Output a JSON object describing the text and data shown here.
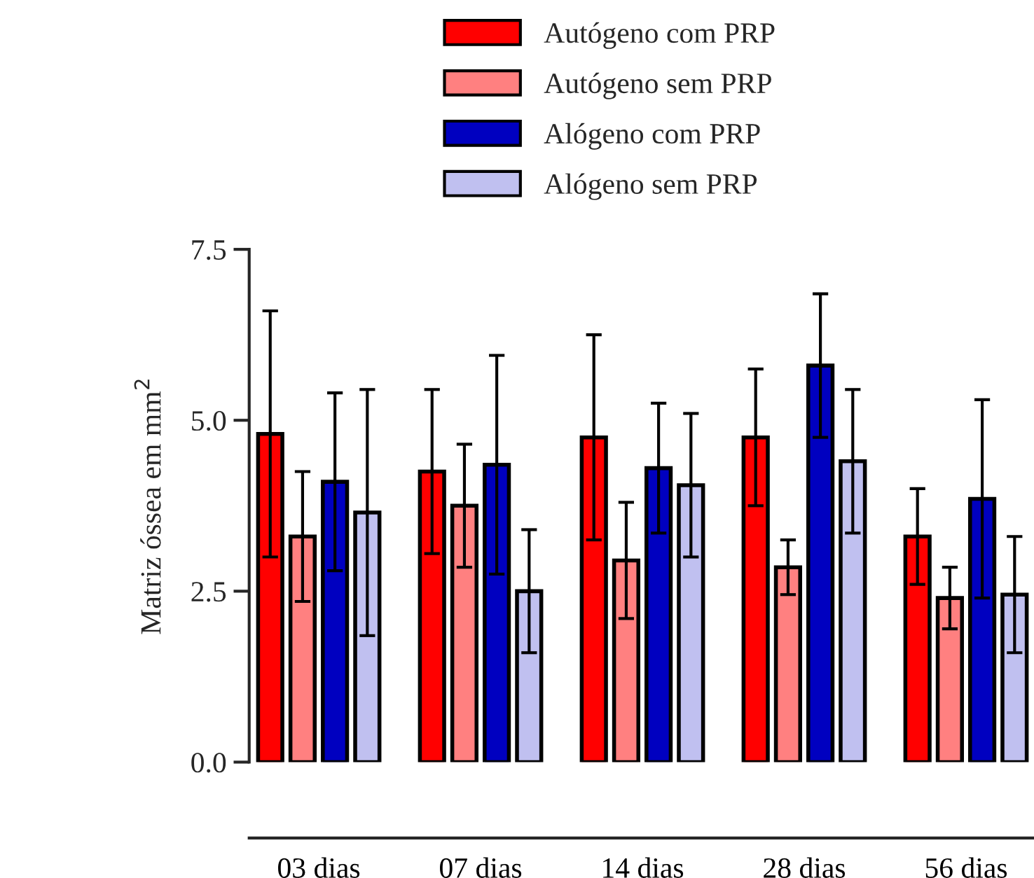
{
  "chart_data": {
    "type": "bar",
    "ylabel": "Matriz óssea em mm$^{2}$",
    "categories": [
      "03 dias",
      "07 dias",
      "14 dias",
      "28 dias",
      "56 dias"
    ],
    "series": [
      {
        "name": "Autógeno com PRP",
        "color": "#ff0000",
        "values": [
          4.8,
          4.25,
          4.75,
          4.75,
          3.3
        ],
        "errors": [
          1.8,
          1.2,
          1.5,
          1.0,
          0.7
        ]
      },
      {
        "name": "Autógeno sem PRP",
        "color": "#ff8080",
        "values": [
          3.3,
          3.75,
          2.95,
          2.85,
          2.4
        ],
        "errors": [
          0.95,
          0.9,
          0.85,
          0.4,
          0.45
        ]
      },
      {
        "name": "Alógeno com PRP",
        "color": "#0000c0",
        "values": [
          4.1,
          4.35,
          4.3,
          5.8,
          3.85
        ],
        "errors": [
          1.3,
          1.6,
          0.95,
          1.05,
          1.45
        ]
      },
      {
        "name": "Alógeno sem PRP",
        "color": "#c0c0f0",
        "values": [
          3.65,
          2.5,
          4.05,
          4.4,
          2.45
        ],
        "errors": [
          1.8,
          0.9,
          1.05,
          1.05,
          0.85
        ]
      }
    ],
    "ylim": [
      0,
      7.5
    ],
    "yticks": [
      {
        "value": 0,
        "label": "0.0"
      },
      2.5,
      {
        "value": 5,
        "label": "5.0"
      },
      7.5
    ],
    "grid": false,
    "legend": "top"
  }
}
